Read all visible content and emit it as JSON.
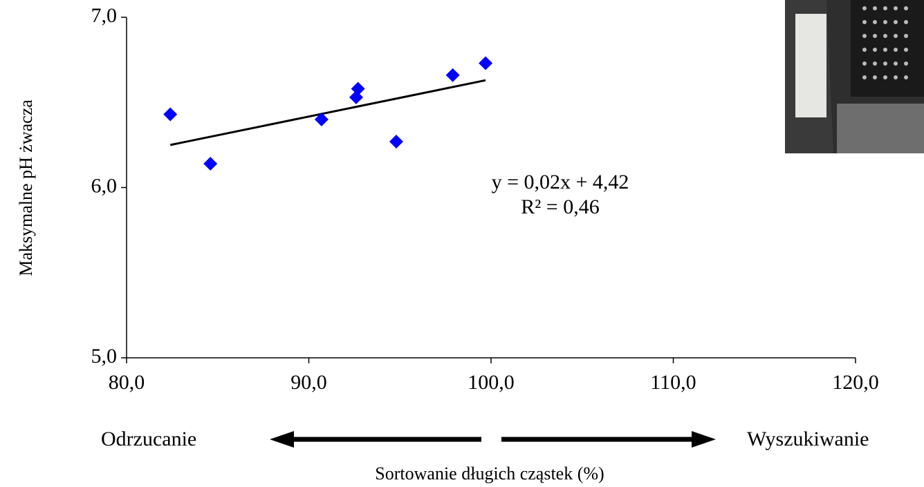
{
  "chart_data": {
    "type": "scatter",
    "x_label": "Sortowanie długich cząstek (%)",
    "y_label": "Maksymalne pH żwacza",
    "x": [
      82.4,
      84.6,
      90.7,
      92.6,
      92.7,
      94.8,
      97.9,
      99.7
    ],
    "y": [
      6.43,
      6.14,
      6.4,
      6.53,
      6.58,
      6.27,
      6.66,
      6.73
    ],
    "color": "#0000ff",
    "trendline": {
      "x": [
        82.4,
        99.7
      ],
      "y": [
        6.25,
        6.63
      ],
      "color": "#000000"
    },
    "equation": "y = 0,02x + 4,42",
    "r_squared": "R² = 0,46",
    "left_annotation": "Odrzucanie",
    "right_annotation": "Wyszukiwanie",
    "xlim": [
      80,
      120
    ],
    "ylim": [
      5,
      7
    ],
    "xticks": [
      {
        "value": 80,
        "label": "80,0"
      },
      {
        "value": 90,
        "label": "90,0"
      },
      {
        "value": 100,
        "label": "100,0"
      },
      {
        "value": 110,
        "label": "110,0"
      },
      {
        "value": 120,
        "label": "120,0"
      }
    ],
    "yticks": [
      {
        "value": 5,
        "label": "5,0"
      },
      {
        "value": 6,
        "label": "6,0"
      },
      {
        "value": 7,
        "label": "7,0"
      }
    ]
  }
}
